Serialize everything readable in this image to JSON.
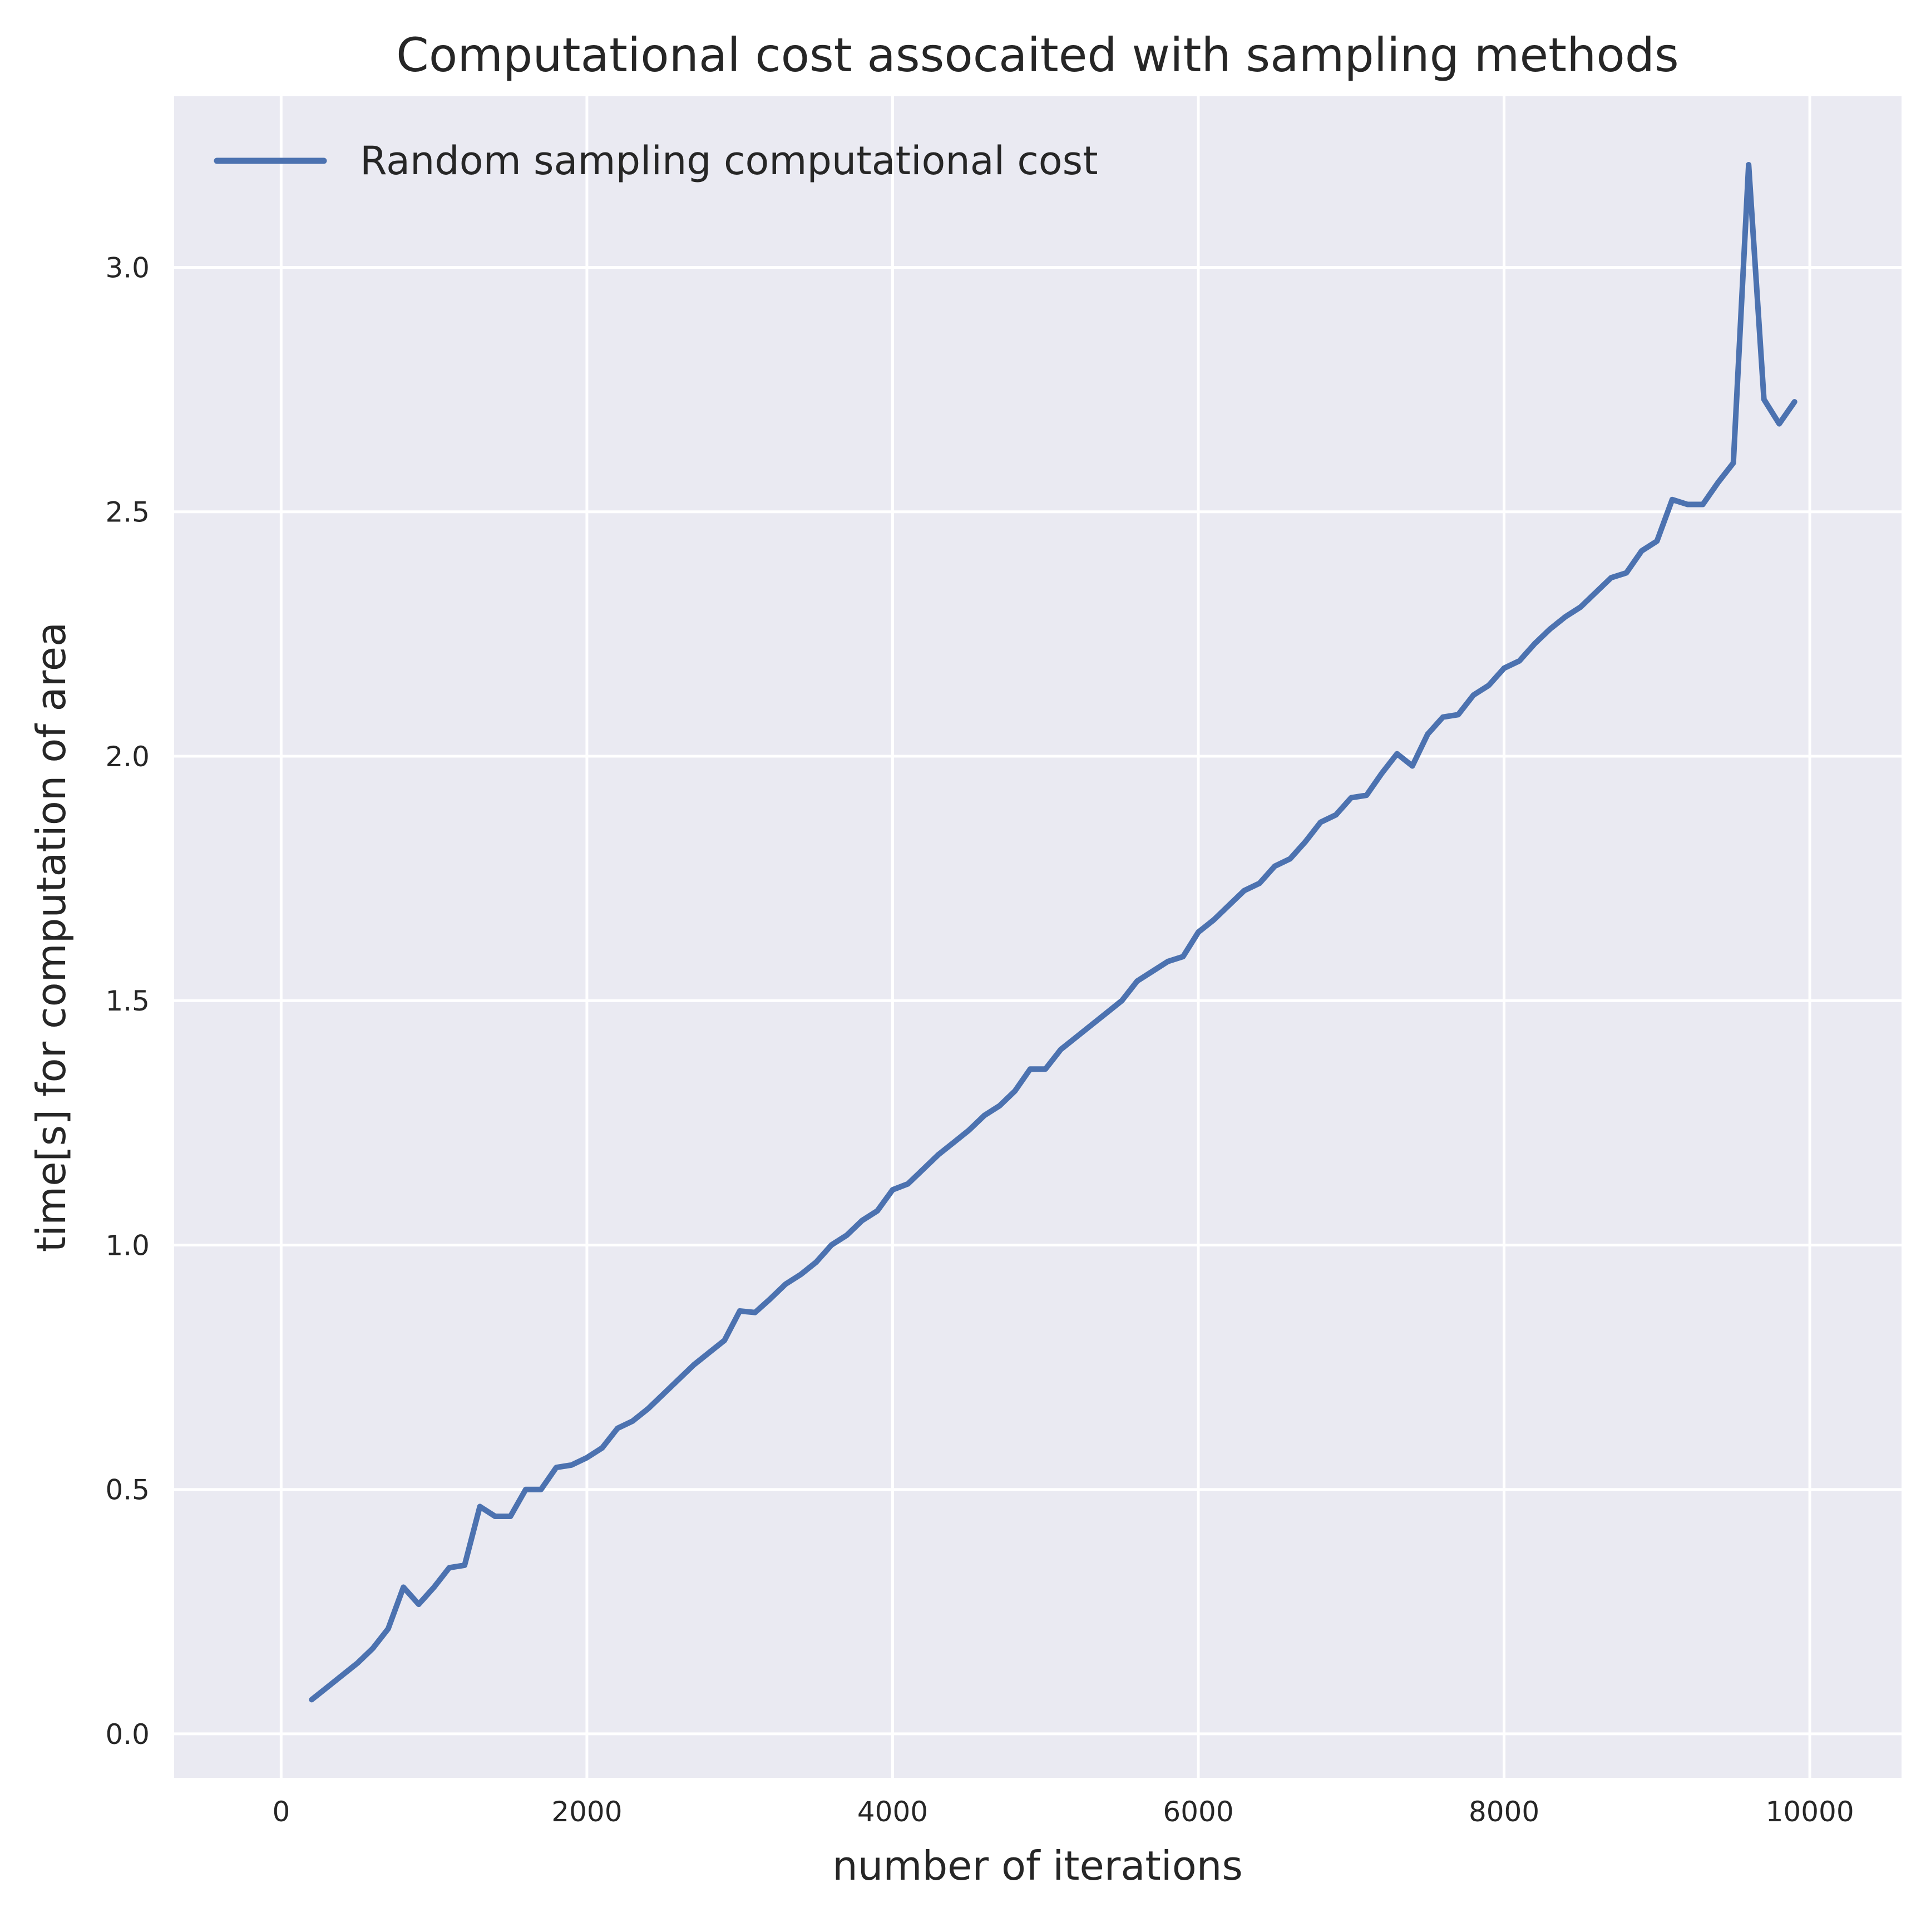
{
  "chart_data": {
    "type": "line",
    "title": "Computational cost assocaited with sampling methods",
    "xlabel": "number of iterations",
    "ylabel": "time[s] for computation of area",
    "xlim": [
      -700,
      10600
    ],
    "ylim": [
      -0.09,
      3.35
    ],
    "xticks": [
      0,
      2000,
      4000,
      6000,
      8000,
      10000
    ],
    "xtick_labels": [
      "0",
      "2000",
      "4000",
      "6000",
      "8000",
      "10000"
    ],
    "yticks": [
      0.0,
      0.5,
      1.0,
      1.5,
      2.0,
      2.5,
      3.0
    ],
    "ytick_labels": [
      "0.0",
      "0.5",
      "1.0",
      "1.5",
      "2.0",
      "2.5",
      "3.0"
    ],
    "grid": true,
    "legend_position": "top-left",
    "colors": {
      "series": "#4c72b0",
      "background": "#eaeaf2",
      "grid": "#ffffff"
    },
    "series": [
      {
        "name": "Random sampling computational cost",
        "x": [
          200,
          300,
          400,
          500,
          600,
          700,
          800,
          900,
          1000,
          1100,
          1200,
          1300,
          1400,
          1500,
          1600,
          1700,
          1800,
          1900,
          2000,
          2100,
          2200,
          2300,
          2400,
          2500,
          2600,
          2700,
          2800,
          2900,
          3000,
          3100,
          3200,
          3300,
          3400,
          3500,
          3600,
          3700,
          3800,
          3900,
          4000,
          4100,
          4200,
          4300,
          4400,
          4500,
          4600,
          4700,
          4800,
          4900,
          5000,
          5100,
          5200,
          5300,
          5400,
          5500,
          5600,
          5700,
          5800,
          5900,
          6000,
          6100,
          6200,
          6300,
          6400,
          6500,
          6600,
          6700,
          6800,
          6900,
          7000,
          7100,
          7200,
          7300,
          7400,
          7500,
          7600,
          7700,
          7800,
          7900,
          8000,
          8100,
          8200,
          8300,
          8400,
          8500,
          8600,
          8700,
          8800,
          8900,
          9000,
          9100,
          9200,
          9300,
          9400,
          9500,
          9600,
          9700,
          9800,
          9900
        ],
        "y": [
          0.07,
          0.095,
          0.12,
          0.145,
          0.175,
          0.215,
          0.3,
          0.265,
          0.3,
          0.34,
          0.345,
          0.465,
          0.445,
          0.445,
          0.5,
          0.5,
          0.545,
          0.55,
          0.565,
          0.585,
          0.625,
          0.64,
          0.665,
          0.695,
          0.725,
          0.755,
          0.78,
          0.805,
          0.865,
          0.862,
          0.89,
          0.92,
          0.94,
          0.965,
          1.0,
          1.02,
          1.05,
          1.07,
          1.113,
          1.125,
          1.155,
          1.185,
          1.21,
          1.235,
          1.265,
          1.285,
          1.315,
          1.36,
          1.36,
          1.4,
          1.425,
          1.45,
          1.475,
          1.5,
          1.54,
          1.56,
          1.58,
          1.59,
          1.64,
          1.665,
          1.695,
          1.725,
          1.74,
          1.775,
          1.79,
          1.825,
          1.865,
          1.88,
          1.915,
          1.92,
          1.965,
          2.005,
          1.98,
          2.045,
          2.08,
          2.085,
          2.125,
          2.145,
          2.18,
          2.195,
          2.23,
          2.26,
          2.285,
          2.305,
          2.335,
          2.365,
          2.375,
          2.42,
          2.44,
          2.525,
          2.515,
          2.515,
          2.56,
          2.6,
          3.21,
          2.73,
          2.68,
          2.725
        ]
      }
    ]
  }
}
